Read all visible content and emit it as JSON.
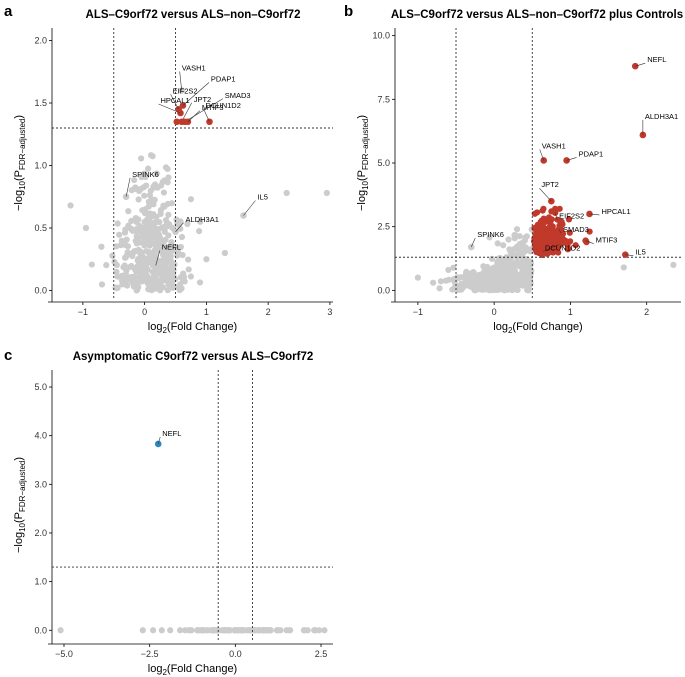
{
  "figure": {
    "colors": {
      "background_points": "#cccccc",
      "significant_up": "#c0392b",
      "significant_down": "#2e86c1"
    }
  },
  "chart_data": [
    {
      "panel": "a",
      "type": "scatter",
      "title": "ALS–C9orf72 versus ALS–non–C9orf72",
      "xlabel_main": "log",
      "xlabel_sub": "2",
      "xlabel_tail": "(Fold Change)",
      "ylabel_pre": "−log",
      "ylabel_sub1": "10",
      "ylabel_mid": "(P",
      "ylabel_sub2": "FDR−adjusted",
      "ylabel_tail": ")",
      "xlim": [
        -1.5,
        3.05
      ],
      "ylim": [
        -0.06,
        2.1
      ],
      "xticks": [
        -1,
        0,
        1,
        2,
        3
      ],
      "xtick_labels": [
        "−1",
        "0",
        "1",
        "2",
        "3"
      ],
      "yticks": [
        0.0,
        0.5,
        1.0,
        1.5,
        2.0
      ],
      "ytick_labels": [
        "0.0",
        "0.5",
        "1.0",
        "1.5",
        "2.0"
      ],
      "vlines": [
        -0.5,
        0.5
      ],
      "hline": 1.3,
      "significant_points": [
        {
          "label": "VASH1",
          "x": 0.6,
          "y": 1.6,
          "color": "gray"
        },
        {
          "label": "PDAP1",
          "x": 0.62,
          "y": 1.48,
          "color": "up"
        },
        {
          "label": "EIF2S2",
          "x": 0.55,
          "y": 1.45,
          "color": "up"
        },
        {
          "label": "HPCAL1",
          "x": 0.58,
          "y": 1.42,
          "color": "up"
        },
        {
          "label": "JPT2",
          "x": 0.6,
          "y": 1.35,
          "color": "up"
        },
        {
          "label": "SMAD3",
          "x": 0.65,
          "y": 1.35,
          "color": "up"
        },
        {
          "label": "MTIF3",
          "x": 0.7,
          "y": 1.35,
          "color": "up"
        },
        {
          "label": "DCUN1D2",
          "x": 1.05,
          "y": 1.35,
          "color": "up"
        },
        {
          "label": "",
          "x": 0.52,
          "y": 1.35,
          "color": "up"
        }
      ],
      "annotated_gray": [
        {
          "label": "SPINK6",
          "x": -0.3,
          "y": 0.75
        },
        {
          "label": "IL5",
          "x": 1.6,
          "y": 0.6
        },
        {
          "label": "ALDH3A1",
          "x": 0.5,
          "y": 0.47
        },
        {
          "label": "NEFL",
          "x": 0.18,
          "y": 0.2
        }
      ]
    },
    {
      "panel": "b",
      "type": "scatter",
      "title": "ALS–C9orf72 versus ALS–non–C9orf72 plus Controls",
      "xlabel_main": "log",
      "xlabel_sub": "2",
      "xlabel_tail": "(Fold Change)",
      "ylabel_pre": "−log",
      "ylabel_sub1": "10",
      "ylabel_mid": "(P",
      "ylabel_sub2": "FDR−adjusted",
      "ylabel_tail": ")",
      "xlim": [
        -1.3,
        2.45
      ],
      "ylim": [
        -0.3,
        10.3
      ],
      "xticks": [
        -1,
        0,
        1,
        2
      ],
      "xtick_labels": [
        "−1",
        "0",
        "1",
        "2"
      ],
      "yticks": [
        0.0,
        2.5,
        5.0,
        7.5,
        10.0
      ],
      "ytick_labels": [
        "0.0",
        "2.5",
        "5.0",
        "7.5",
        "10.0"
      ],
      "vlines": [
        -0.5,
        0.5
      ],
      "hline": 1.3,
      "significant_points": [
        {
          "label": "NEFL",
          "x": 1.85,
          "y": 8.8,
          "color": "up"
        },
        {
          "label": "ALDH3A1",
          "x": 1.95,
          "y": 6.1,
          "color": "up"
        },
        {
          "label": "VASH1",
          "x": 0.65,
          "y": 5.1,
          "color": "up"
        },
        {
          "label": "PDAP1",
          "x": 0.95,
          "y": 5.1,
          "color": "up"
        },
        {
          "label": "JPT2",
          "x": 0.75,
          "y": 3.5,
          "color": "up"
        },
        {
          "label": "EIF2S2",
          "x": 0.8,
          "y": 3.05,
          "color": "up"
        },
        {
          "label": "HPCAL1",
          "x": 1.25,
          "y": 3.0,
          "color": "up"
        },
        {
          "label": "SMAD3",
          "x": 0.85,
          "y": 2.4,
          "color": "up"
        },
        {
          "label": "MTIF3",
          "x": 1.2,
          "y": 1.95,
          "color": "up"
        },
        {
          "label": "DCUN1D2",
          "x": 0.85,
          "y": 1.8,
          "color": "up"
        },
        {
          "label": "IL5",
          "x": 1.72,
          "y": 1.4,
          "color": "up"
        }
      ],
      "annotated_gray": [
        {
          "label": "SPINK6",
          "x": -0.3,
          "y": 1.7
        }
      ]
    },
    {
      "panel": "c",
      "type": "scatter",
      "title": "Asymptomatic C9orf72 versus ALS–C9orf72",
      "xlabel_main": "log",
      "xlabel_sub": "2",
      "xlabel_tail": "(Fold Change)",
      "ylabel_pre": "−log",
      "ylabel_sub1": "10",
      "ylabel_mid": "(P",
      "ylabel_sub2": "FDR−adjusted",
      "ylabel_tail": ")",
      "xlim": [
        -5.35,
        2.85
      ],
      "ylim": [
        -0.2,
        5.35
      ],
      "xticks": [
        -5.0,
        -2.5,
        0.0,
        2.5
      ],
      "xtick_labels": [
        "−5.0",
        "−2.5",
        "0.0",
        "2.5"
      ],
      "yticks": [
        0.0,
        1.0,
        2.0,
        3.0,
        4.0,
        5.0
      ],
      "ytick_labels": [
        "0.0",
        "1.0",
        "2.0",
        "3.0",
        "4.0",
        "5.0"
      ],
      "vlines": [
        -0.5,
        0.5
      ],
      "hline": 1.3,
      "significant_points": [
        {
          "label": "NEFL",
          "x": -2.25,
          "y": 3.83,
          "color": "down"
        }
      ],
      "annotated_gray": []
    }
  ]
}
